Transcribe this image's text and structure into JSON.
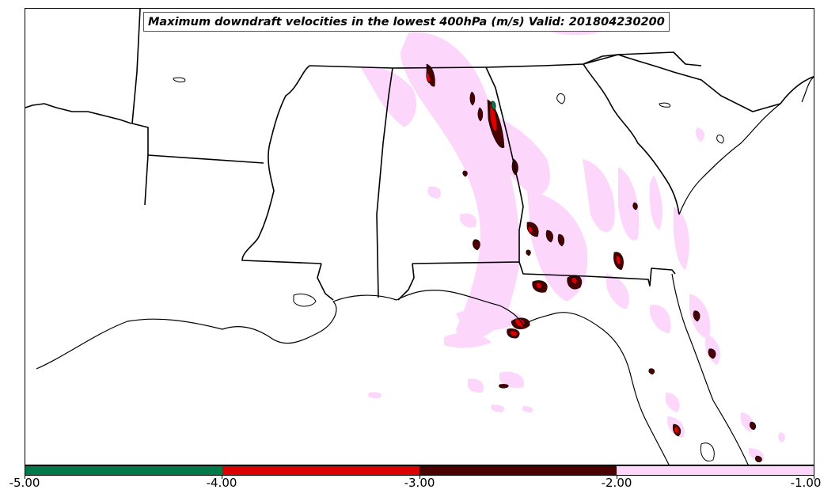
{
  "title": "Maximum downdraft velocities in the lowest 400hPa (m/s) Valid: 201804230200",
  "colorbar": {
    "segments": [
      {
        "from": -5.0,
        "to": -4.0,
        "color": "#00794a"
      },
      {
        "from": -4.0,
        "to": -3.0,
        "color": "#dd0000"
      },
      {
        "from": -3.0,
        "to": -2.0,
        "color": "#4a0000"
      },
      {
        "from": -2.0,
        "to": -1.0,
        "color": "#fcd7fb"
      }
    ],
    "labels": [
      "-5.00",
      "-4.00",
      "-3.00",
      "-2.00",
      "-1.00"
    ]
  },
  "colors": {
    "light_pink": "#fcd7fb",
    "dark_red": "#4a0000",
    "red": "#dd0000",
    "green": "#00794a",
    "boundary": "#000000"
  }
}
